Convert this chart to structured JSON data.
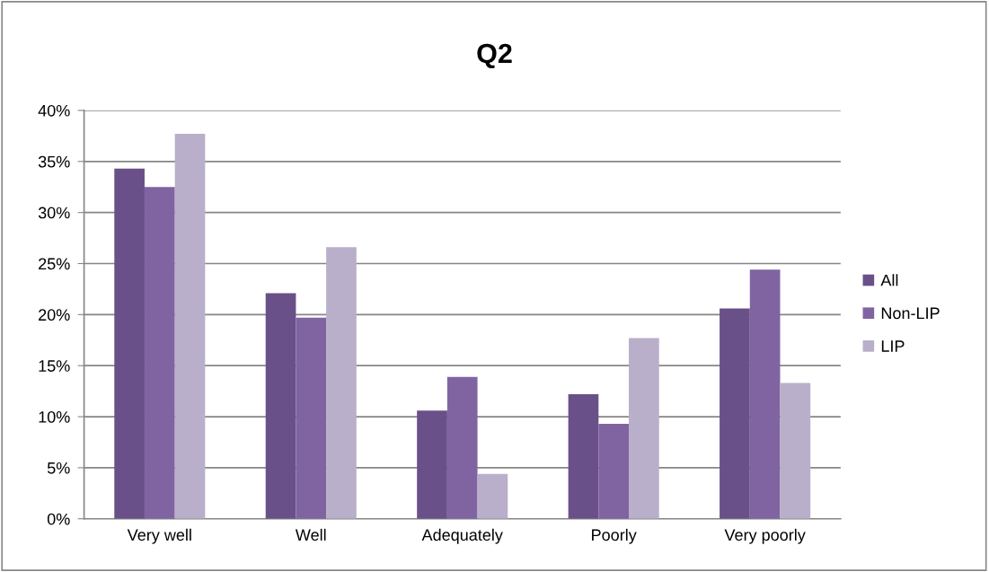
{
  "chart_data": {
    "type": "bar",
    "title": "Q2",
    "categories": [
      "Very well",
      "Well",
      "Adequately",
      "Poorly",
      "Very poorly"
    ],
    "series": [
      {
        "name": "All",
        "color": "#6a5088",
        "values": [
          34.3,
          22.1,
          10.6,
          12.2,
          20.6
        ]
      },
      {
        "name": "Non-LIP",
        "color": "#8064a2",
        "values": [
          32.5,
          19.7,
          13.9,
          9.3,
          24.4
        ]
      },
      {
        "name": "LIP",
        "color": "#b9afca",
        "values": [
          37.7,
          26.6,
          4.4,
          17.7,
          13.3
        ]
      }
    ],
    "ylim": [
      0,
      40
    ],
    "yticks": [
      {
        "value": 0,
        "label": "0%"
      },
      {
        "value": 5,
        "label": "5%"
      },
      {
        "value": 10,
        "label": "10%"
      },
      {
        "value": 15,
        "label": "15%"
      },
      {
        "value": 20,
        "label": "20%"
      },
      {
        "value": 25,
        "label": "25%"
      },
      {
        "value": 30,
        "label": "30%"
      },
      {
        "value": 35,
        "label": "35%"
      },
      {
        "value": 40,
        "label": "40%"
      }
    ],
    "grid": "y",
    "legend": "right"
  }
}
